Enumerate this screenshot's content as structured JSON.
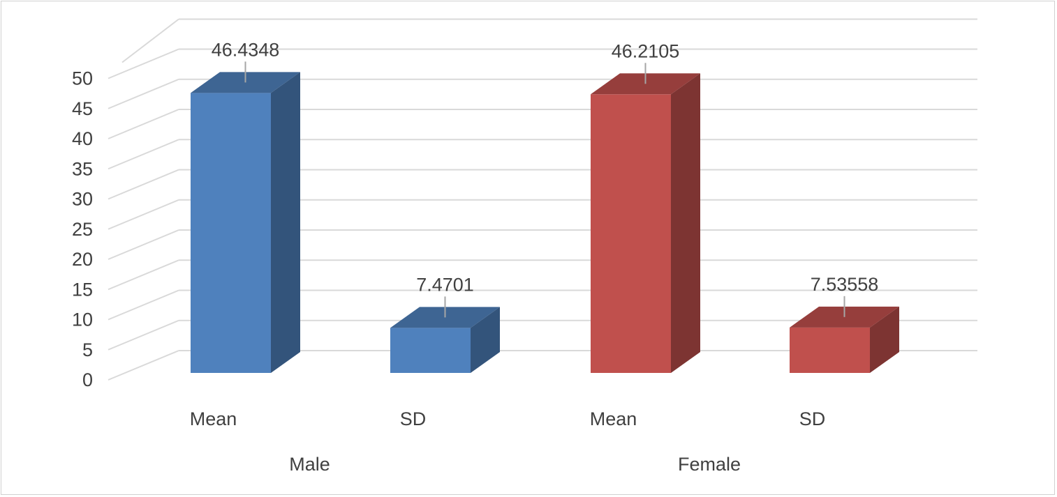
{
  "chart_data": {
    "type": "bar",
    "title": "",
    "xlabel": "",
    "ylabel": "",
    "ylim": [
      0,
      50
    ],
    "yticks": [
      "0",
      "5",
      "10",
      "15",
      "20",
      "25",
      "30",
      "35",
      "40",
      "45",
      "50"
    ],
    "groups": [
      "Male",
      "Female"
    ],
    "categories": [
      {
        "label": "Mean",
        "group": "Male",
        "value": 46.4348,
        "value_label": "46.4348",
        "color": "#4F81BD"
      },
      {
        "label": "SD",
        "group": "Male",
        "value": 7.4701,
        "value_label": "7.4701",
        "color": "#4F81BD"
      },
      {
        "label": "Mean",
        "group": "Female",
        "value": 46.2105,
        "value_label": "46.2105",
        "color": "#C0504D"
      },
      {
        "label": "SD",
        "group": "Female",
        "value": 7.53558,
        "value_label": "7.53558",
        "color": "#C0504D"
      }
    ],
    "grid": true,
    "style": "3d-column"
  }
}
